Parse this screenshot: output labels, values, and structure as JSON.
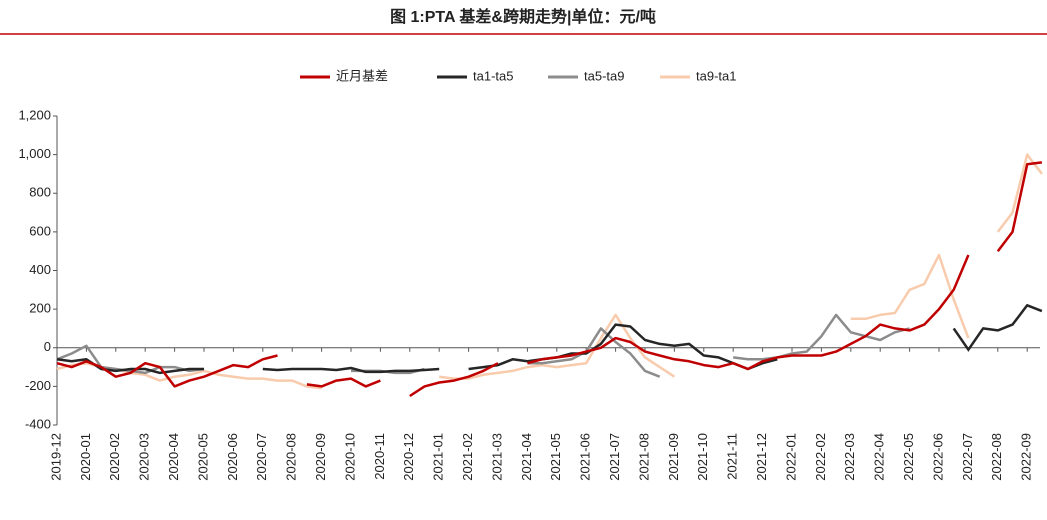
{
  "chart_data": {
    "type": "line",
    "title": "图 1:PTA 基差&跨期走势|单位：元/吨",
    "categories": [
      "2019-12",
      null,
      "2020-01",
      null,
      "2020-02",
      null,
      "2020-03",
      null,
      "2020-04",
      null,
      "2020-05",
      null,
      "2020-06",
      null,
      "2020-07",
      null,
      "2020-08",
      null,
      "2020-09",
      null,
      "2020-10",
      null,
      "2020-11",
      null,
      "2020-12",
      null,
      "2021-01",
      null,
      "2021-02",
      null,
      "2021-03",
      null,
      "2021-04",
      null,
      "2021-05",
      null,
      "2021-06",
      null,
      "2021-07",
      null,
      "2021-08",
      null,
      "2021-09",
      null,
      "2021-10",
      null,
      "2021-11",
      null,
      "2021-12",
      null,
      "2022-01",
      null,
      "2022-02",
      null,
      "2022-03",
      null,
      "2022-04",
      null,
      "2022-05",
      null,
      "2022-06",
      null,
      "2022-07",
      null,
      "2022-08",
      null,
      "2022-09",
      null
    ],
    "series": [
      {
        "name": "近月基差",
        "color": "#c00000",
        "values": [
          -80,
          -100,
          -70,
          -100,
          -150,
          -130,
          -80,
          -100,
          -200,
          -170,
          -150,
          -120,
          -90,
          -100,
          -60,
          -40,
          null,
          -190,
          -200,
          -170,
          -160,
          -200,
          -170,
          null,
          -250,
          -200,
          -180,
          -170,
          -150,
          -120,
          -80,
          null,
          -80,
          -60,
          -50,
          -40,
          -20,
          0,
          50,
          30,
          -20,
          -40,
          -60,
          -70,
          -90,
          -100,
          -80,
          -110,
          -70,
          -50,
          -40,
          -40,
          -40,
          -20,
          20,
          60,
          120,
          100,
          90,
          120,
          200,
          300,
          480,
          null,
          500,
          600,
          950,
          960
        ]
      },
      {
        "name": "ta1-ta5",
        "color": "#262626",
        "values": [
          -60,
          -70,
          -60,
          -110,
          -120,
          -110,
          -110,
          -130,
          -120,
          -110,
          -110,
          null,
          null,
          null,
          -110,
          -115,
          -110,
          -110,
          -110,
          -115,
          -105,
          -125,
          -125,
          -120,
          -120,
          -115,
          -110,
          null,
          -110,
          -100,
          -90,
          -60,
          -70,
          -60,
          -50,
          -30,
          -30,
          20,
          120,
          110,
          40,
          20,
          10,
          20,
          -40,
          -50,
          -80,
          -110,
          -80,
          -60,
          null,
          null,
          null,
          null,
          null,
          null,
          null,
          null,
          null,
          null,
          null,
          100,
          -10,
          100,
          90,
          120,
          220,
          190
        ]
      },
      {
        "name": "ta5-ta9",
        "color": "#8c8c8c",
        "values": [
          -60,
          -30,
          10,
          -100,
          -110,
          -120,
          -130,
          -100,
          -100,
          -120,
          -110,
          null,
          null,
          null,
          null,
          null,
          null,
          null,
          null,
          null,
          -120,
          -120,
          -120,
          -130,
          -130,
          -110,
          null,
          null,
          null,
          null,
          null,
          null,
          -80,
          -80,
          -70,
          -60,
          -20,
          100,
          30,
          -30,
          -120,
          -150,
          null,
          null,
          null,
          null,
          -50,
          -60,
          -60,
          -50,
          -30,
          -20,
          60,
          170,
          80,
          60,
          40,
          80,
          100,
          null,
          null,
          null,
          null,
          null,
          null,
          null,
          null,
          null
        ]
      },
      {
        "name": "ta9-ta1",
        "color": "#f8cbad",
        "values": [
          -110,
          -90,
          -80,
          -100,
          -110,
          -130,
          -140,
          -170,
          -150,
          -140,
          -120,
          -140,
          -150,
          -160,
          -160,
          -170,
          -170,
          -200,
          -210,
          null,
          null,
          null,
          null,
          null,
          null,
          null,
          -150,
          -160,
          -160,
          -140,
          -130,
          -120,
          -100,
          -90,
          -100,
          -90,
          -80,
          50,
          170,
          50,
          -50,
          -100,
          -150,
          null,
          null,
          null,
          null,
          null,
          null,
          null,
          null,
          null,
          null,
          null,
          150,
          150,
          170,
          180,
          300,
          330,
          480,
          250,
          50,
          null,
          600,
          700,
          1000,
          900
        ]
      }
    ],
    "ylim": [
      -400,
      1200
    ],
    "yticks": [
      -400,
      -200,
      0,
      200,
      400,
      600,
      800,
      {
        "value": 1000,
        "label": "1,000"
      },
      {
        "value": 1200,
        "label": "1,200"
      }
    ]
  }
}
